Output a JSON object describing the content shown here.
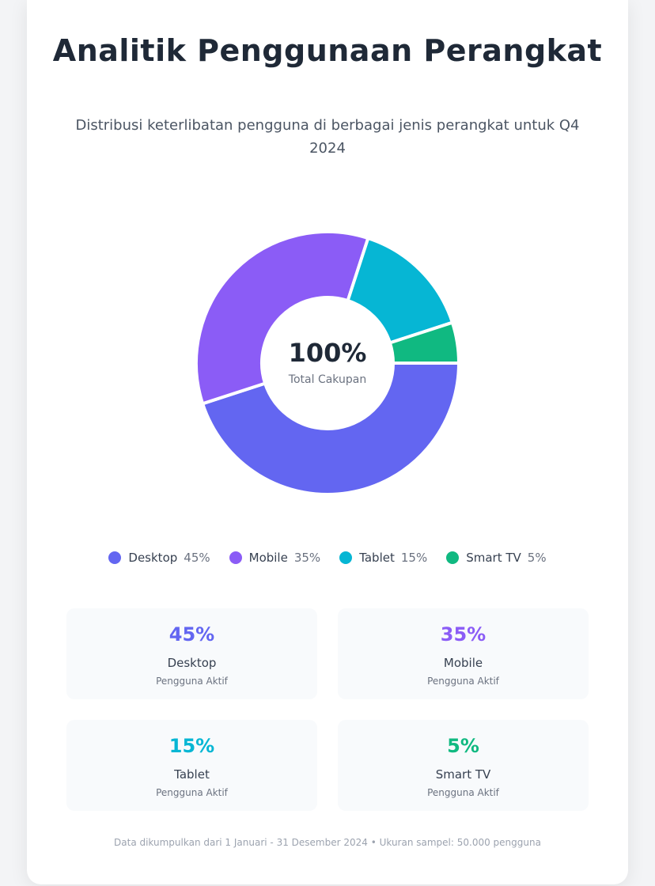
{
  "header": {
    "title": "Analitik Penggunaan Perangkat",
    "subtitle": "Distribusi keterlibatan pengguna di berbagai jenis perangkat untuk Q4 2024"
  },
  "center": {
    "value": "100%",
    "label": "Total Cakupan"
  },
  "chart_data": {
    "type": "pie",
    "categories": [
      "Desktop",
      "Mobile",
      "Tablet",
      "Smart TV"
    ],
    "values": [
      45,
      35,
      15,
      5
    ],
    "value_labels": [
      "45%",
      "35%",
      "15%",
      "5%"
    ],
    "colors": [
      "#6366f1",
      "#8b5cf6",
      "#06b6d4",
      "#10b981"
    ],
    "title": "Analitik Penggunaan Perangkat",
    "legend": "bottom"
  },
  "stats": [
    {
      "value": "45%",
      "label": "Desktop",
      "sub": "Pengguna Aktif",
      "color": "#6366f1"
    },
    {
      "value": "35%",
      "label": "Mobile",
      "sub": "Pengguna Aktif",
      "color": "#8b5cf6"
    },
    {
      "value": "15%",
      "label": "Tablet",
      "sub": "Pengguna Aktif",
      "color": "#06b6d4"
    },
    {
      "value": "5%",
      "label": "Smart TV",
      "sub": "Pengguna Aktif",
      "color": "#10b981"
    }
  ],
  "footer": "Data dikumpulkan dari 1 Januari - 31 Desember 2024 • Ukuran sampel: 50.000 pengguna"
}
